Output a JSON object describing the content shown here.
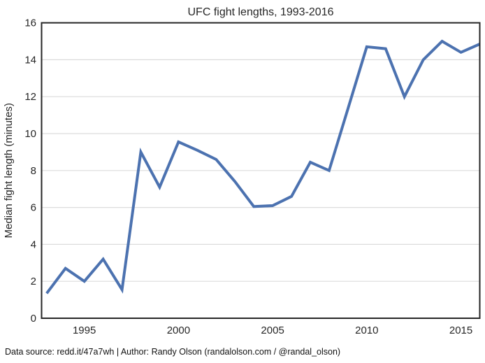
{
  "figure": {
    "title": "UFC fight lengths, 1993-2016",
    "footer": "Data source: redd.it/47a7wh | Author: Randy Olson (randalolson.com / @randal_olson)"
  },
  "chart_data": {
    "type": "line",
    "title": "UFC fight lengths, 1993-2016",
    "xlabel": "",
    "ylabel": "Median fight length (minutes)",
    "x": [
      1993,
      1994,
      1995,
      1996,
      1997,
      1998,
      1999,
      2000,
      2001,
      2002,
      2003,
      2004,
      2005,
      2006,
      2007,
      2008,
      2009,
      2010,
      2011,
      2012,
      2013,
      2014,
      2015,
      2016
    ],
    "series": [
      {
        "name": "Median fight length (minutes)",
        "values": [
          1.35,
          2.7,
          2.0,
          3.2,
          1.55,
          9.0,
          7.1,
          9.55,
          9.1,
          8.6,
          7.4,
          6.05,
          6.1,
          6.6,
          8.45,
          8.0,
          11.35,
          14.7,
          14.6,
          12.0,
          14.0,
          15.0,
          14.4,
          14.85
        ]
      }
    ],
    "xlim": [
      1992.73,
      2016.0
    ],
    "ylim": [
      0,
      16
    ],
    "xticks": [
      1995,
      2000,
      2005,
      2010,
      2015
    ],
    "yticks": [
      0,
      2,
      4,
      6,
      8,
      10,
      12,
      14,
      16
    ],
    "grid": "horizontal-only",
    "legend": "none",
    "line_color": "#4C72B0",
    "grid_color": "#DCDCDC",
    "spine_color": "#262626",
    "line_width": 4
  }
}
